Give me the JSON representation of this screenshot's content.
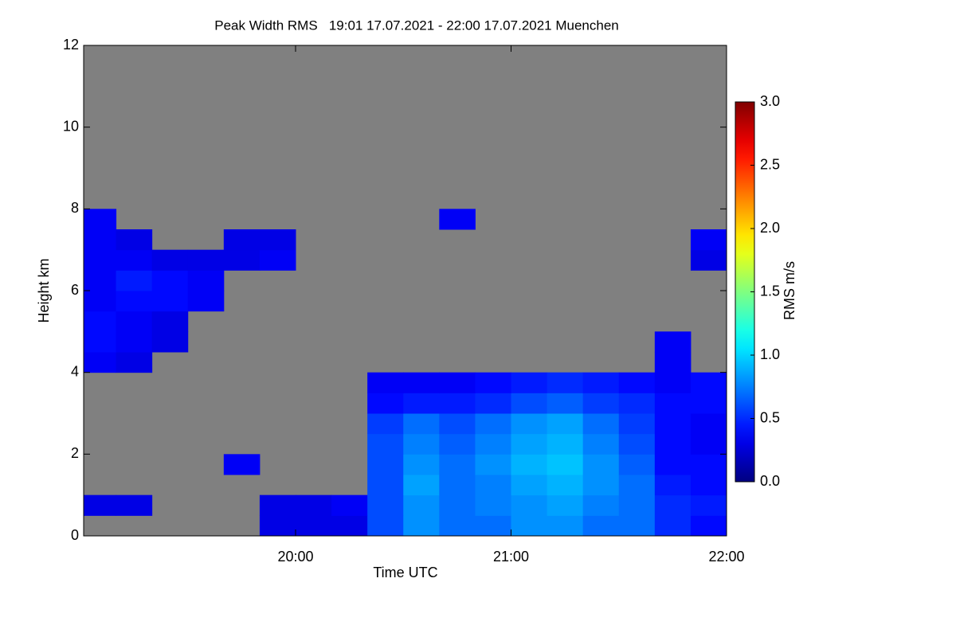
{
  "chart_data": {
    "type": "heatmap",
    "title": "Peak Width RMS   19:01 17.07.2021 - 22:00 17.07.2021 Muenchen",
    "xlabel": "Time UTC",
    "ylabel": "Height km",
    "xlim": [
      1141,
      1320
    ],
    "xticks": [
      {
        "value": 1200,
        "label": "20:00"
      },
      {
        "value": 1260,
        "label": "21:00"
      },
      {
        "value": 1320,
        "label": "22:00"
      }
    ],
    "ylim": [
      0,
      12
    ],
    "yticks": [
      0,
      2,
      4,
      6,
      8,
      10,
      12
    ],
    "background": "#808080",
    "colormap": "jet",
    "x_bins": [
      1141,
      1150,
      1160,
      1170,
      1180,
      1190,
      1200,
      1210,
      1220,
      1230,
      1240,
      1250,
      1260,
      1270,
      1280,
      1290,
      1300,
      1310,
      1320
    ],
    "y_bins": [
      0,
      0.5,
      1,
      1.5,
      2,
      2.5,
      3,
      3.5,
      4,
      4.5,
      5,
      5.5,
      6,
      6.5,
      7,
      7.5,
      8
    ],
    "z": [
      [
        null,
        null,
        null,
        null,
        null,
        0.3,
        0.3,
        0.3,
        0.6,
        0.8,
        0.7,
        0.7,
        0.8,
        0.8,
        0.7,
        0.7,
        0.5,
        0.4
      ],
      [
        0.3,
        0.3,
        null,
        null,
        null,
        0.3,
        0.3,
        0.35,
        0.6,
        0.8,
        0.7,
        0.75,
        0.8,
        0.85,
        0.75,
        0.7,
        0.5,
        0.45
      ],
      [
        null,
        null,
        null,
        null,
        null,
        null,
        null,
        null,
        0.6,
        0.85,
        0.7,
        0.75,
        0.85,
        0.9,
        0.8,
        0.7,
        0.45,
        0.4
      ],
      [
        null,
        null,
        null,
        null,
        0.35,
        null,
        null,
        null,
        0.6,
        0.8,
        0.7,
        0.8,
        0.9,
        0.95,
        0.8,
        0.65,
        0.4,
        0.4
      ],
      [
        null,
        null,
        null,
        null,
        null,
        null,
        null,
        null,
        0.6,
        0.75,
        0.65,
        0.75,
        0.85,
        0.9,
        0.75,
        0.6,
        0.4,
        0.35
      ],
      [
        null,
        null,
        null,
        null,
        null,
        null,
        null,
        null,
        0.55,
        0.7,
        0.6,
        0.7,
        0.8,
        0.85,
        0.7,
        0.55,
        0.4,
        0.35
      ],
      [
        null,
        null,
        null,
        null,
        null,
        null,
        null,
        null,
        0.4,
        0.45,
        0.45,
        0.5,
        0.6,
        0.65,
        0.55,
        0.5,
        0.4,
        0.4
      ],
      [
        null,
        null,
        null,
        null,
        null,
        null,
        null,
        null,
        0.35,
        0.35,
        0.35,
        0.4,
        0.45,
        0.5,
        0.45,
        0.4,
        0.35,
        0.4
      ],
      [
        0.35,
        0.3,
        null,
        null,
        null,
        null,
        null,
        null,
        null,
        null,
        null,
        null,
        null,
        null,
        null,
        null,
        0.35,
        null
      ],
      [
        0.4,
        0.35,
        0.3,
        null,
        null,
        null,
        null,
        null,
        null,
        null,
        null,
        null,
        null,
        null,
        null,
        null,
        0.35,
        null
      ],
      [
        0.4,
        0.35,
        0.3,
        null,
        null,
        null,
        null,
        null,
        null,
        null,
        null,
        null,
        null,
        null,
        null,
        null,
        null,
        null
      ],
      [
        0.35,
        0.4,
        0.4,
        0.35,
        null,
        null,
        null,
        null,
        null,
        null,
        null,
        null,
        null,
        null,
        null,
        null,
        null,
        null
      ],
      [
        0.35,
        0.45,
        0.4,
        0.35,
        null,
        null,
        null,
        null,
        null,
        null,
        null,
        null,
        null,
        null,
        null,
        null,
        null,
        null
      ],
      [
        0.35,
        0.35,
        0.3,
        0.3,
        0.3,
        0.35,
        null,
        null,
        null,
        null,
        null,
        null,
        null,
        null,
        null,
        null,
        null,
        0.3
      ],
      [
        0.35,
        0.3,
        null,
        null,
        0.3,
        0.3,
        null,
        null,
        null,
        null,
        null,
        null,
        null,
        null,
        null,
        null,
        null,
        0.35
      ],
      [
        0.35,
        null,
        null,
        null,
        null,
        null,
        null,
        null,
        null,
        null,
        0.35,
        null,
        null,
        null,
        null,
        null,
        null,
        null
      ]
    ],
    "colorbar": {
      "label": "RMS m/s",
      "lim": [
        0,
        3
      ],
      "ticks": [
        {
          "value": 0,
          "label": "0.0"
        },
        {
          "value": 0.5,
          "label": "0.5"
        },
        {
          "value": 1,
          "label": "1.0"
        },
        {
          "value": 1.5,
          "label": "1.5"
        },
        {
          "value": 2,
          "label": "2.0"
        },
        {
          "value": 2.5,
          "label": "2.5"
        },
        {
          "value": 3,
          "label": "3.0"
        }
      ]
    }
  }
}
